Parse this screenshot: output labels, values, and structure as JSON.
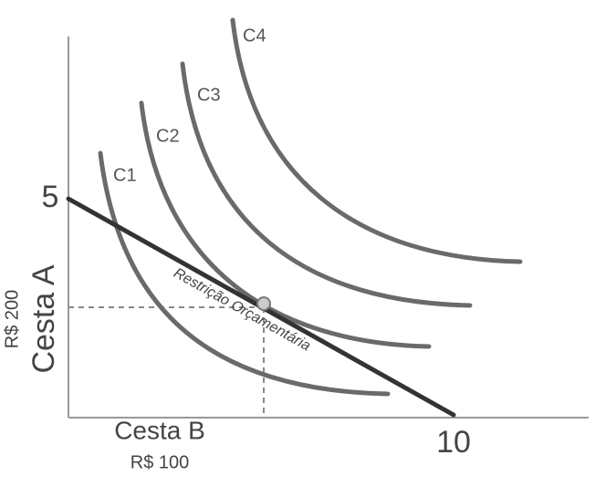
{
  "axes": {
    "y_tick": "5",
    "x_tick": "10",
    "y_label": "Cesta A",
    "y_price": "R$ 200",
    "x_label": "Cesta B",
    "x_price": "R$ 100"
  },
  "curves": [
    "C1",
    "C2",
    "C3",
    "C4"
  ],
  "budget_label": "Restrição Orçamentária"
}
